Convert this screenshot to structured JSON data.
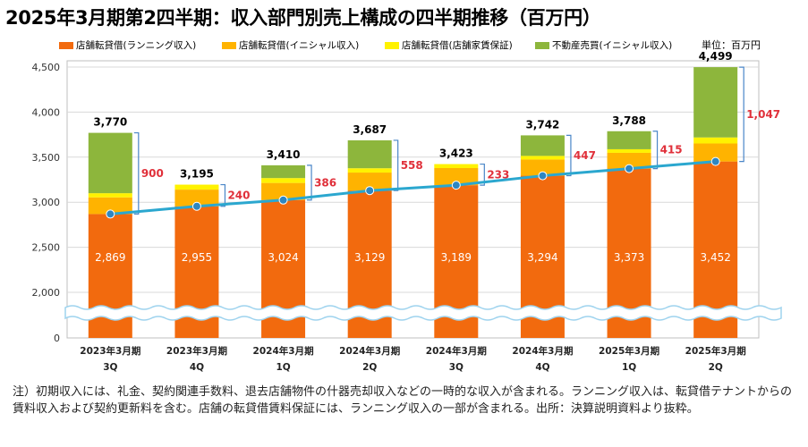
{
  "title": "2025年3月期第2四半期：収入部門別売上構成の四半期推移（百万円）",
  "unit_label": "単位：百万円",
  "note": "注）初期収入には、礼金、契約関連手数料、退去店舗物件の什器売却収入などの一時的な収入が含まれる。ランニング収入は、転貸借テナントからの賃料収入および契約更新料を含む。店舗の転貸借賃料保証には、ランニング収入の一部が含まれる。出所：決算説明資料より抜粋。",
  "colors": {
    "running": "#F26A0E",
    "initial": "#FFB300",
    "guarantee": "#FFF200",
    "realestate": "#8DB63C",
    "trend": "#2BA7CF",
    "bracket": "#4A86C8",
    "diff_text": "#E0303A",
    "grid": "#D9D9D9"
  },
  "chart_data": {
    "type": "bar",
    "stacked": true,
    "title": "2025年3月期第2四半期：収入部門別売上構成の四半期推移（百万円）",
    "xlabel": "",
    "ylabel": "",
    "ylim": [
      0,
      4500
    ],
    "axis_break": [
      0,
      2000
    ],
    "yticks": [
      "0",
      "2,000",
      "2,500",
      "3,000",
      "3,500",
      "4,000",
      "4,500"
    ],
    "ytick_values": [
      0,
      2000,
      2500,
      3000,
      3500,
      4000,
      4500
    ],
    "grid": true,
    "categories": [
      [
        "2023年3月期",
        "3Q"
      ],
      [
        "2023年3月期",
        "4Q"
      ],
      [
        "2024年3月期",
        "1Q"
      ],
      [
        "2024年3月期",
        "2Q"
      ],
      [
        "2024年3月期",
        "3Q"
      ],
      [
        "2024年3月期",
        "4Q"
      ],
      [
        "2025年3月期",
        "1Q"
      ],
      [
        "2025年3月期",
        "2Q"
      ]
    ],
    "series": [
      {
        "name": "店舗転貸借(ランニング収入)",
        "key": "running",
        "values": [
          2869,
          2955,
          3024,
          3129,
          3189,
          3294,
          3373,
          3452
        ]
      },
      {
        "name": "店舗転貸借(イニシャル収入)",
        "key": "initial",
        "values": [
          185,
          185,
          190,
          200,
          190,
          180,
          175,
          200
        ]
      },
      {
        "name": "店舗転貸借(店舗家賃保証)",
        "key": "guarantee",
        "values": [
          46,
          55,
          54,
          48,
          44,
          40,
          40,
          67
        ]
      },
      {
        "name": "不動産売買(イニシャル収入)",
        "key": "realestate",
        "values": [
          670,
          0,
          142,
          310,
          0,
          228,
          200,
          780
        ]
      }
    ],
    "totals": [
      "3,770",
      "3,195",
      "3,410",
      "3,687",
      "3,423",
      "3,742",
      "3,788",
      "4,499"
    ],
    "total_values": [
      3770,
      3195,
      3410,
      3687,
      3423,
      3742,
      3788,
      4499
    ],
    "running_labels": [
      "2,869",
      "2,955",
      "3,024",
      "3,129",
      "3,189",
      "3,294",
      "3,373",
      "3,452"
    ],
    "differences": [
      "900",
      "240",
      "386",
      "558",
      "233",
      "447",
      "415",
      "1,047"
    ],
    "legend_position": "top",
    "trend_line": "店舗転貸借(ランニング収入)"
  }
}
